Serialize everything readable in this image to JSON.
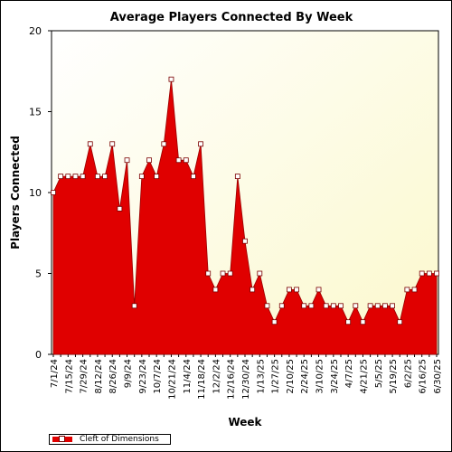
{
  "chart_data": {
    "type": "area",
    "title": "Average Players Connected By Week",
    "xlabel": "Week",
    "ylabel": "Players Connected",
    "ylim": [
      0,
      20
    ],
    "yticks": [
      0,
      5,
      10,
      15,
      20
    ],
    "x_tick_labels": [
      "7/1/24",
      "7/15/24",
      "7/29/24",
      "8/12/24",
      "8/26/24",
      "9/9/24",
      "9/23/24",
      "10/7/24",
      "10/21/24",
      "11/4/24",
      "11/18/24",
      "12/2/24",
      "12/16/24",
      "12/30/24",
      "1/13/25",
      "1/27/25",
      "2/10/25",
      "2/24/25",
      "3/10/25",
      "3/24/25",
      "4/7/25",
      "4/21/25",
      "5/5/25",
      "5/19/25",
      "6/2/25",
      "6/16/25",
      "6/30/25"
    ],
    "x": [
      "7/1/24",
      "7/8/24",
      "7/15/24",
      "7/22/24",
      "7/29/24",
      "8/5/24",
      "8/12/24",
      "8/19/24",
      "8/26/24",
      "9/2/24",
      "9/9/24",
      "9/16/24",
      "9/23/24",
      "9/30/24",
      "10/7/24",
      "10/14/24",
      "10/21/24",
      "10/28/24",
      "11/4/24",
      "11/11/24",
      "11/18/24",
      "11/25/24",
      "12/2/24",
      "12/9/24",
      "12/16/24",
      "12/23/24",
      "12/30/24",
      "1/6/25",
      "1/13/25",
      "1/20/25",
      "1/27/25",
      "2/3/25",
      "2/10/25",
      "2/17/25",
      "2/24/25",
      "3/3/25",
      "3/10/25",
      "3/17/25",
      "3/24/25",
      "3/31/25",
      "4/7/25",
      "4/14/25",
      "4/21/25",
      "4/28/25",
      "5/5/25",
      "5/12/25",
      "5/19/25",
      "5/26/25",
      "6/2/25",
      "6/9/25",
      "6/16/25",
      "6/23/25",
      "6/30/25"
    ],
    "series": [
      {
        "name": "Cleft of Dimensions",
        "color": "#e00000",
        "values": [
          10,
          11,
          11,
          11,
          11,
          13,
          11,
          11,
          13,
          9,
          12,
          3,
          11,
          12,
          11,
          13,
          17,
          12,
          12,
          11,
          13,
          5,
          4,
          5,
          5,
          11,
          7,
          4,
          5,
          3,
          2,
          3,
          4,
          4,
          3,
          3,
          4,
          3,
          3,
          3,
          2,
          3,
          2,
          3,
          3,
          3,
          3,
          2,
          4,
          4,
          5,
          5,
          5
        ]
      }
    ],
    "grid": false,
    "legend_position": "bottom-left",
    "background_gradient": [
      "#ffffff",
      "#fbf8cc"
    ]
  }
}
